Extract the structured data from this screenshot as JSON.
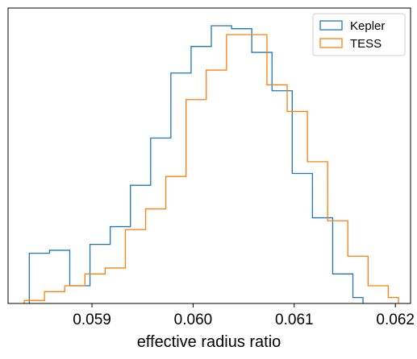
{
  "chart_data": {
    "type": "histogram",
    "xlabel": "effective radius ratio",
    "ylabel": "",
    "title": "",
    "xlim": [
      0.05817,
      0.06215
    ],
    "ylim": [
      0,
      1.0
    ],
    "y_ticks_visible": false,
    "grid": false,
    "x_ticks": [
      {
        "value": 0.059,
        "label": "0.059"
      },
      {
        "value": 0.06,
        "label": "0.060"
      },
      {
        "value": 0.061,
        "label": "0.061"
      },
      {
        "value": 0.062,
        "label": "0.062"
      }
    ],
    "legend": {
      "placement": "top-right",
      "entries": [
        "Kepler",
        "TESS"
      ]
    },
    "series": [
      {
        "name": "Kepler",
        "color": "#1f77b4",
        "bin_edges": [
          0.05838,
          0.05848,
          0.05858,
          0.05868,
          0.05878,
          0.05888,
          0.05898,
          0.05908,
          0.05918,
          0.05928,
          0.05938,
          0.05948,
          0.05958,
          0.05968,
          0.05978,
          0.05988,
          0.05998,
          0.06008,
          0.06018,
          0.06028,
          0.06038,
          0.06048,
          0.06058,
          0.06068,
          0.06078,
          0.06088,
          0.06098,
          0.06108,
          0.06118,
          0.06128,
          0.06138,
          0.06148,
          0.06158,
          0.06168
        ],
        "counts": [
          0.17,
          0.17,
          0.18,
          0.18,
          0.06,
          0.06,
          0.2,
          0.2,
          0.26,
          0.26,
          0.4,
          0.4,
          0.56,
          0.56,
          0.78,
          0.78,
          0.87,
          0.87,
          0.94,
          0.94,
          0.93,
          0.93,
          0.85,
          0.85,
          0.72,
          0.72,
          0.44,
          0.44,
          0.29,
          0.29,
          0.1,
          0.1,
          0.02
        ]
      },
      {
        "name": "TESS",
        "color": "#ff7f0e",
        "bin_edges": [
          0.05833,
          0.05843,
          0.05853,
          0.05863,
          0.05873,
          0.05883,
          0.05893,
          0.05903,
          0.05913,
          0.05923,
          0.05933,
          0.05943,
          0.05953,
          0.05963,
          0.05973,
          0.05983,
          0.05993,
          0.06003,
          0.06013,
          0.06023,
          0.06033,
          0.06043,
          0.06053,
          0.06063,
          0.06073,
          0.06083,
          0.06093,
          0.06103,
          0.06113,
          0.06123,
          0.06133,
          0.06143,
          0.06153,
          0.06163,
          0.06173,
          0.06183,
          0.06193,
          0.06203
        ],
        "counts": [
          0.01,
          0.01,
          0.04,
          0.04,
          0.06,
          0.06,
          0.1,
          0.1,
          0.12,
          0.12,
          0.25,
          0.25,
          0.32,
          0.32,
          0.43,
          0.43,
          0.69,
          0.69,
          0.79,
          0.79,
          0.91,
          0.91,
          0.91,
          0.91,
          0.74,
          0.74,
          0.65,
          0.65,
          0.48,
          0.48,
          0.28,
          0.28,
          0.16,
          0.16,
          0.06,
          0.06,
          0.02
        ]
      }
    ]
  }
}
